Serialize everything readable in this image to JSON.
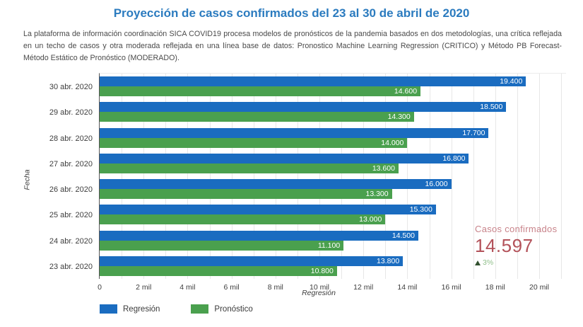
{
  "page": {
    "title": "Proyección de casos confirmados del 23 al 30 de abril de 2020",
    "description": "La plataforma de información coordinación SICA COVID19 procesa modelos de pronósticos de la pandemia basados en dos metodologías, una crítica reflejada en un techo de casos y otra moderada reflejada en una línea base de datos: Pronostico Machine Learning Regression (CRITICO) y Método PB Forecast- Método Estático de Pronóstico (MODERADO)."
  },
  "chart_data": {
    "type": "bar",
    "orientation": "horizontal",
    "title": "Proyección de casos confirmados del 23 al 30 de abril de 2020",
    "xlabel": "Regresión",
    "ylabel": "Fecha",
    "xlim": [
      0,
      20000
    ],
    "grid": true,
    "legend_position": "bottom",
    "categories": [
      "30 abr. 2020",
      "29 abr. 2020",
      "28 abr. 2020",
      "27 abr. 2020",
      "26 abr. 2020",
      "25 abr. 2020",
      "24 abr. 2020",
      "23 abr. 2020"
    ],
    "x_ticks": [
      {
        "value": 0,
        "label": "0"
      },
      {
        "value": 2000,
        "label": "2 mil"
      },
      {
        "value": 4000,
        "label": "4 mil"
      },
      {
        "value": 6000,
        "label": "6 mil"
      },
      {
        "value": 8000,
        "label": "8 mil"
      },
      {
        "value": 10000,
        "label": "10 mil"
      },
      {
        "value": 12000,
        "label": "12 mil"
      },
      {
        "value": 14000,
        "label": "14 mil"
      },
      {
        "value": 16000,
        "label": "16 mil"
      },
      {
        "value": 18000,
        "label": "18 mil"
      },
      {
        "value": 20000,
        "label": "20 mil"
      }
    ],
    "series": [
      {
        "name": "Regresión",
        "color": "#1a6cc0",
        "values": [
          19400,
          18500,
          17700,
          16800,
          16000,
          15300,
          14500,
          13800
        ],
        "labels": [
          "19.400",
          "18.500",
          "17.700",
          "16.800",
          "16.000",
          "15.300",
          "14.500",
          "13.800"
        ]
      },
      {
        "name": "Pronóstico",
        "color": "#4aa04e",
        "values": [
          14600,
          14300,
          14000,
          13600,
          13300,
          13000,
          11100,
          10800
        ],
        "labels": [
          "14.600",
          "14.300",
          "14.000",
          "13.600",
          "13.300",
          "13.000",
          "11.100",
          "10.800"
        ]
      }
    ]
  },
  "kpi": {
    "label": "Casos confirmados",
    "value": "14.597",
    "delta": "3%",
    "delta_direction": "up"
  },
  "colors": {
    "title": "#2b7bbf",
    "regression_bar": "#1a6cc0",
    "forecast_bar": "#4aa04e",
    "gridline": "#e7e7e7",
    "kpi_label": "#c8838a",
    "kpi_value": "#b3525a",
    "kpi_delta": "#8fbf8a",
    "kpi_delta_arrow": "#31502e"
  }
}
